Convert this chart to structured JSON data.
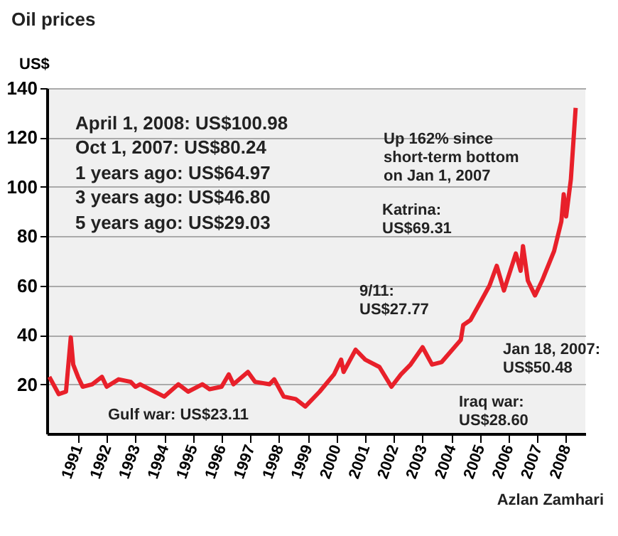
{
  "chart_data": {
    "type": "line",
    "title": "Oil prices",
    "ylabel": "US$",
    "x": [
      "1990-01",
      "1990-05",
      "1990-08",
      "1990-10",
      "1990-11",
      "1991-01",
      "1991-03",
      "1991-07",
      "1991-11",
      "1992-01",
      "1992-06",
      "1992-11",
      "1993-01",
      "1993-03",
      "1994-01",
      "1994-07",
      "1994-11",
      "1995-05",
      "1995-08",
      "1996-01",
      "1996-04",
      "1996-06",
      "1996-12",
      "1997-03",
      "1997-09",
      "1997-11",
      "1998-03",
      "1998-08",
      "1998-12",
      "1999-06",
      "1999-12",
      "2000-03",
      "2000-04",
      "2000-09",
      "2001-01",
      "2001-07",
      "2001-12",
      "2002-04",
      "2002-08",
      "2003-01",
      "2003-05",
      "2003-09",
      "2004-05",
      "2004-06",
      "2004-09",
      "2005-01",
      "2005-05",
      "2005-08",
      "2005-11",
      "2006-04",
      "2006-06",
      "2006-07",
      "2006-09",
      "2006-12",
      "2007-03",
      "2007-08",
      "2007-11",
      "2007-12",
      "2008-01",
      "2008-03",
      "2008-05"
    ],
    "series": [
      {
        "color": "#e8202a",
        "values": [
          23,
          16,
          17,
          39,
          28,
          23,
          19,
          20,
          23,
          19,
          22,
          21,
          19,
          20,
          15,
          20,
          17,
          20,
          18,
          19,
          24,
          20,
          25,
          21,
          20,
          22,
          15,
          14,
          11,
          17,
          24,
          30,
          25,
          34,
          30,
          27,
          19,
          24,
          28,
          35,
          28,
          29,
          38,
          44,
          46,
          53,
          60,
          68,
          58,
          73,
          66,
          76,
          62,
          56,
          62,
          74,
          86,
          97,
          88,
          103,
          132
        ]
      }
    ],
    "xlim": [
      "1989-12",
      "2008-09"
    ],
    "xticks": [
      "1991",
      "1992",
      "1993",
      "1994",
      "1995",
      "1996",
      "1997",
      "1998",
      "1999",
      "2000",
      "2001",
      "2002",
      "2003",
      "2004",
      "2005",
      "2006",
      "2007",
      "2008"
    ],
    "ylim": [
      0,
      140
    ],
    "yticks": [
      20,
      40,
      60,
      80,
      100,
      120,
      140
    ],
    "grid": "y",
    "annotations": [
      "April 1, 2008: US$100.98",
      "Oct 1, 2007: US$80.24",
      "1 years ago: US$64.97",
      "3 years ago: US$46.80",
      "5 years ago: US$29.03",
      "Gulf war: US$23.11",
      "9/11:\nUS$27.77",
      "Iraq war:\nUS$28.60",
      "Jan 18, 2007:\nUS$50.48",
      "Katrina:\nUS$69.31",
      "Up 162% since\nshort-term bottom\non Jan 1, 2007",
      "Azlan Zamhari"
    ]
  }
}
